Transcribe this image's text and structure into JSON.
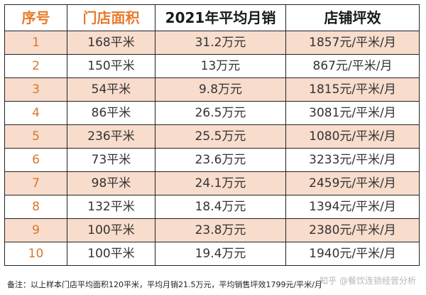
{
  "table": {
    "headers": [
      "序号",
      "门店面积",
      "2021年平均月销",
      "店铺坪效"
    ],
    "rows": [
      [
        "1",
        "168平米",
        "31.2万元",
        "1857元/平米/月"
      ],
      [
        "2",
        "150平米",
        "13万元",
        "867元/平米/月"
      ],
      [
        "3",
        "54平米",
        "9.8万元",
        "1815元/平米/月"
      ],
      [
        "4",
        "86平米",
        "26.5万元",
        "3081元/平米/月"
      ],
      [
        "5",
        "236平米",
        "25.5万元",
        "1080元/平米/月"
      ],
      [
        "6",
        "73平米",
        "23.6万元",
        "3233元/平米/月"
      ],
      [
        "7",
        "98平米",
        "24.1万元",
        "2459元/平米/月"
      ],
      [
        "8",
        "132平米",
        "18.4万元",
        "1394元/平米/月"
      ],
      [
        "9",
        "100平米",
        "23.8万元",
        "2380元/平米/月"
      ],
      [
        "10",
        "100平米",
        "19.4万元",
        "1940元/平米/月"
      ]
    ]
  },
  "note": "备注：以上样本门店平均面积120平米，平均月销21.5万元，平均销售坪效1799元/平米/月",
  "watermark": "知乎 @餐饮连锁经营分析",
  "colors": {
    "header_accent": "#e87a2c",
    "row_highlight": "#f8dccc"
  }
}
